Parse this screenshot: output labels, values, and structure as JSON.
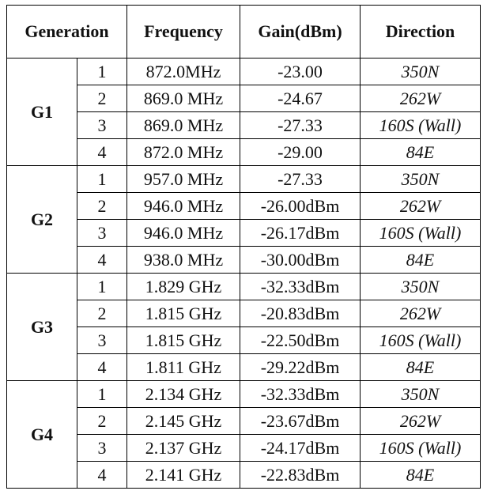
{
  "table": {
    "headers": {
      "generation": "Generation",
      "frequency": "Frequency",
      "gain": "Gain(dBm)",
      "direction": "Direction"
    },
    "groups": [
      {
        "label": "G1",
        "rows": [
          {
            "n": "1",
            "frequency": "872.0MHz",
            "gain": "-23.00",
            "direction": "350N"
          },
          {
            "n": "2",
            "frequency": "869.0 MHz",
            "gain": "-24.67",
            "direction": "262W"
          },
          {
            "n": "3",
            "frequency": "869.0 MHz",
            "gain": "-27.33",
            "direction": "160S (Wall)"
          },
          {
            "n": "4",
            "frequency": "872.0 MHz",
            "gain": "-29.00",
            "direction": "84E"
          }
        ]
      },
      {
        "label": "G2",
        "rows": [
          {
            "n": "1",
            "frequency": "957.0 MHz",
            "gain": "-27.33",
            "direction": "350N"
          },
          {
            "n": "2",
            "frequency": "946.0 MHz",
            "gain": "-26.00dBm",
            "direction": "262W"
          },
          {
            "n": "3",
            "frequency": "946.0 MHz",
            "gain": "-26.17dBm",
            "direction": "160S (Wall)"
          },
          {
            "n": "4",
            "frequency": "938.0 MHz",
            "gain": "-30.00dBm",
            "direction": "84E"
          }
        ]
      },
      {
        "label": "G3",
        "rows": [
          {
            "n": "1",
            "frequency": "1.829 GHz",
            "gain": "-32.33dBm",
            "direction": "350N"
          },
          {
            "n": "2",
            "frequency": "1.815 GHz",
            "gain": "-20.83dBm",
            "direction": "262W"
          },
          {
            "n": "3",
            "frequency": "1.815 GHz",
            "gain": "-22.50dBm",
            "direction": "160S (Wall)"
          },
          {
            "n": "4",
            "frequency": "1.811 GHz",
            "gain": "-29.22dBm",
            "direction": "84E"
          }
        ]
      },
      {
        "label": "G4",
        "rows": [
          {
            "n": "1",
            "frequency": "2.134 GHz",
            "gain": "-32.33dBm",
            "direction": "350N"
          },
          {
            "n": "2",
            "frequency": "2.145 GHz",
            "gain": "-23.67dBm",
            "direction": "262W"
          },
          {
            "n": "3",
            "frequency": "2.137 GHz",
            "gain": "-24.17dBm",
            "direction": "160S (Wall)"
          },
          {
            "n": "4",
            "frequency": "2.141 GHz",
            "gain": "-22.83dBm",
            "direction": "84E"
          }
        ]
      }
    ]
  }
}
